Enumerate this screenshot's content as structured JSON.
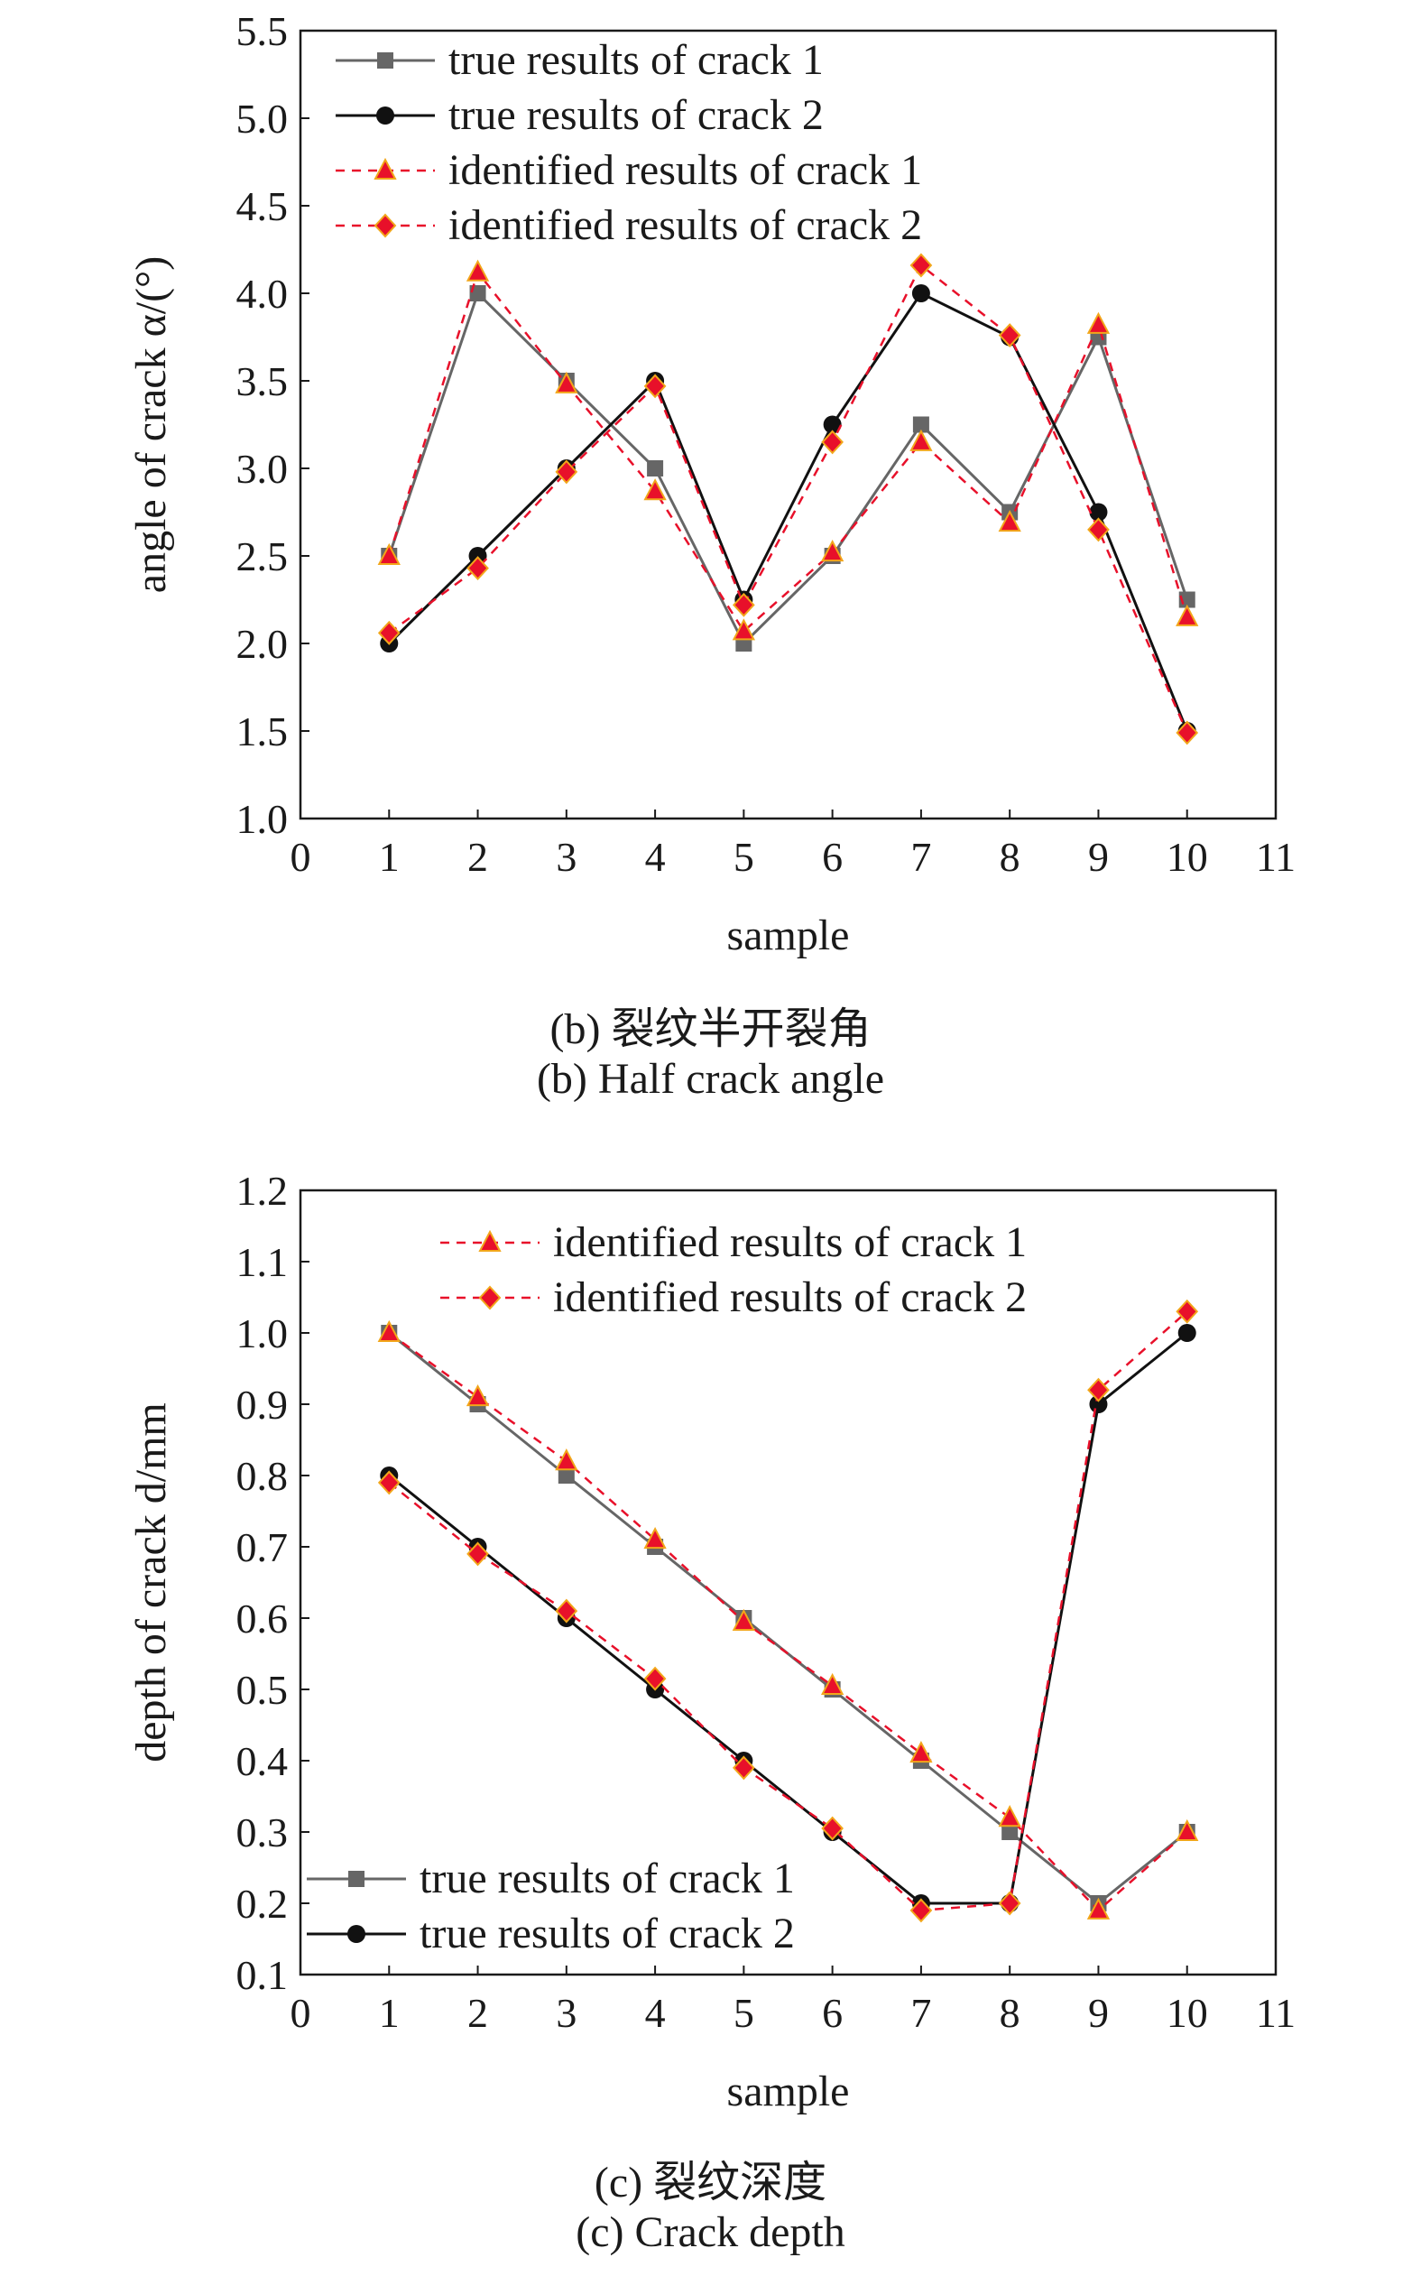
{
  "chart_data": [
    {
      "type": "line",
      "panel": "b",
      "caption_cn": "(b) 裂纹半开裂角",
      "caption_en": "(b) Half crack angle",
      "xlabel": "sample",
      "ylabel": "angle of crack α/(°)",
      "xlim": [
        0,
        11
      ],
      "ylim": [
        1.0,
        5.5
      ],
      "xticks": [
        "0",
        "1",
        "2",
        "3",
        "4",
        "5",
        "6",
        "7",
        "8",
        "9",
        "10",
        "11"
      ],
      "yticks": [
        "1.0",
        "1.5",
        "2.0",
        "2.5",
        "3.0",
        "3.5",
        "4.0",
        "4.5",
        "5.0",
        "5.5"
      ],
      "grid": false,
      "legend_position": "top-left",
      "x": [
        1,
        2,
        3,
        4,
        5,
        6,
        7,
        8,
        9,
        10
      ],
      "series": [
        {
          "name": "true results of crack 1",
          "style": "solid",
          "marker": "square",
          "color": "#666666",
          "values": [
            2.5,
            4.0,
            3.5,
            3.0,
            2.0,
            2.5,
            3.25,
            2.75,
            3.75,
            2.25
          ]
        },
        {
          "name": "true results of crack 2",
          "style": "solid",
          "marker": "circle",
          "color": "#111111",
          "values": [
            2.0,
            2.5,
            3.0,
            3.5,
            2.25,
            3.25,
            4.0,
            3.75,
            2.75,
            1.5
          ]
        },
        {
          "name": "identified results of crack 1",
          "style": "dashed",
          "marker": "triangle",
          "color": "#e8102a",
          "values": [
            2.5,
            4.12,
            3.48,
            2.87,
            2.07,
            2.52,
            3.15,
            2.69,
            3.82,
            2.15
          ]
        },
        {
          "name": "identified results of crack 2",
          "style": "dashed",
          "marker": "diamond",
          "color": "#e8102a",
          "values": [
            2.06,
            2.43,
            2.98,
            3.47,
            2.22,
            3.15,
            4.16,
            3.76,
            2.65,
            1.49
          ]
        }
      ]
    },
    {
      "type": "line",
      "panel": "c",
      "caption_cn": "(c) 裂纹深度",
      "caption_en": "(c) Crack depth",
      "xlabel": "sample",
      "ylabel": "depth of crack d/mm",
      "xlim": [
        0,
        11
      ],
      "ylim": [
        0.1,
        1.2
      ],
      "xticks": [
        "0",
        "1",
        "2",
        "3",
        "4",
        "5",
        "6",
        "7",
        "8",
        "9",
        "10",
        "11"
      ],
      "yticks": [
        "0.1",
        "0.2",
        "0.3",
        "0.4",
        "0.5",
        "0.6",
        "0.7",
        "0.8",
        "0.9",
        "1.0",
        "1.1",
        "1.2"
      ],
      "grid": false,
      "legend_position": "top-right and bottom-left",
      "x": [
        1,
        2,
        3,
        4,
        5,
        6,
        7,
        8,
        9,
        10
      ],
      "series": [
        {
          "name": "true results of crack 1",
          "style": "solid",
          "marker": "square",
          "color": "#666666",
          "values": [
            1.0,
            0.9,
            0.8,
            0.7,
            0.6,
            0.5,
            0.4,
            0.3,
            0.2,
            0.3
          ]
        },
        {
          "name": "true results of crack 2",
          "style": "solid",
          "marker": "circle",
          "color": "#111111",
          "values": [
            0.8,
            0.7,
            0.6,
            0.5,
            0.4,
            0.3,
            0.2,
            0.2,
            0.9,
            1.0
          ]
        },
        {
          "name": "identified results of crack 1",
          "style": "dashed",
          "marker": "triangle",
          "color": "#e8102a",
          "values": [
            1.0,
            0.91,
            0.82,
            0.71,
            0.595,
            0.505,
            0.41,
            0.32,
            0.19,
            0.3
          ]
        },
        {
          "name": "identified results of crack 2",
          "style": "dashed",
          "marker": "diamond",
          "color": "#e8102a",
          "values": [
            0.79,
            0.69,
            0.61,
            0.515,
            0.39,
            0.305,
            0.19,
            0.2,
            0.92,
            1.03
          ]
        }
      ]
    }
  ]
}
